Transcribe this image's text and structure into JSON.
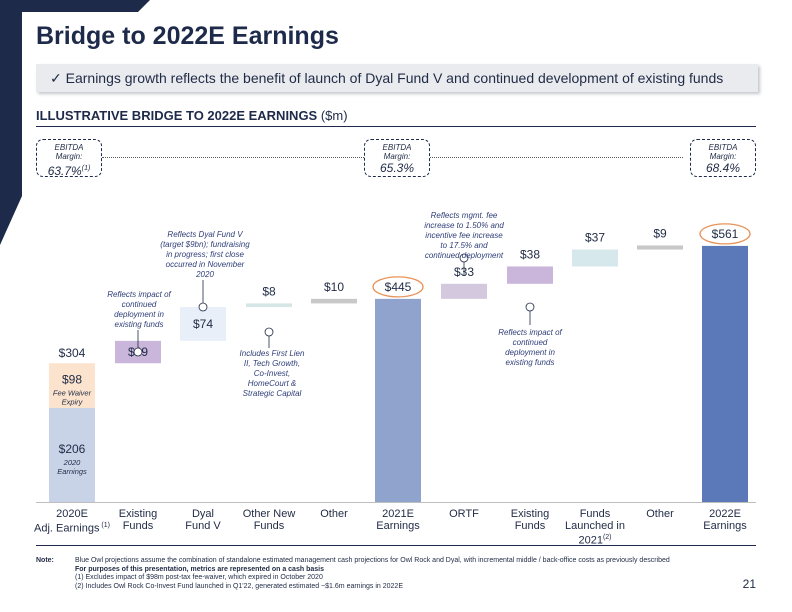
{
  "title": "Bridge to 2022E Earnings",
  "banner": {
    "check": "✓",
    "text": "Earnings growth reflects the benefit of launch of Dyal Fund V and continued development of existing funds"
  },
  "subtitle": {
    "main": "ILLUSTRATIVE BRIDGE TO 2022E EARNINGS",
    "unit": " ($m)"
  },
  "ebitda_boxes": [
    {
      "label_1": "EBITDA",
      "label_2": "Margin:",
      "value": "63.7%",
      "note": "(1)"
    },
    {
      "label_1": "EBITDA",
      "label_2": "Margin:",
      "value": "65.3%",
      "note": ""
    },
    {
      "label_1": "EBITDA",
      "label_2": "Margin:",
      "value": "68.4%",
      "note": ""
    }
  ],
  "x_labels": [
    {
      "line1": "2020E",
      "line2": "Adj. Earnings",
      "note": " (1)"
    },
    {
      "line1": "Existing",
      "line2": "Funds",
      "note": ""
    },
    {
      "line1": "Dyal",
      "line2": "Fund V",
      "note": ""
    },
    {
      "line1": "Other New",
      "line2": "Funds",
      "note": ""
    },
    {
      "line1": "Other",
      "line2": "",
      "note": ""
    },
    {
      "line1": "2021E",
      "line2": "Earnings",
      "note": ""
    },
    {
      "line1": "ORTF",
      "line2": "",
      "note": ""
    },
    {
      "line1": "Existing",
      "line2": "Funds",
      "note": ""
    },
    {
      "line1": "Funds",
      "line2": "Launched in",
      "line3": "2021",
      "note": "(2)"
    },
    {
      "line1": "Other",
      "line2": "",
      "note": ""
    },
    {
      "line1": "2022E",
      "line2": "Earnings",
      "note": ""
    }
  ],
  "callouts": {
    "existing_funds_1": "Reflects impact of continued deployment in existing funds",
    "dyal_fund_v": "Reflects Dyal Fund V (target $9bn); fundraising in progress; first close occurred in November 2020",
    "other_new_funds": "Includes First Lien II, Tech Growth, Co-Invest, HomeCourt & Strategic Capital",
    "ortf": "Reflects mgmt. fee increase to 1.50% and incentive fee increase to 17.5% and continued deployment",
    "existing_funds_2": "Reflects impact of continued deployment in existing funds"
  },
  "chart_data": {
    "type": "bar",
    "subtype": "waterfall",
    "title": "ILLUSTRATIVE BRIDGE TO 2022E EARNINGS ($m)",
    "unit": "$m",
    "categories": [
      "2020E Adj. Earnings",
      "Existing Funds",
      "Dyal Fund V",
      "Other New Funds",
      "Other",
      "2021E Earnings",
      "ORTF",
      "Existing Funds",
      "Funds Launched in 2021",
      "Other",
      "2022E Earnings"
    ],
    "values": [
      304,
      49,
      74,
      8,
      10,
      445,
      33,
      38,
      37,
      9,
      561
    ],
    "labels": [
      "$304",
      "$49",
      "$74",
      "$8",
      "$10",
      "$445",
      "$33",
      "$38",
      "$37",
      "$9",
      "$561"
    ],
    "kinds": [
      "total",
      "delta",
      "delta",
      "delta",
      "delta",
      "total",
      "delta",
      "delta",
      "delta",
      "delta",
      "total"
    ],
    "first_bar_segments": [
      {
        "value": 206,
        "label": "$206",
        "sublabel": "2020 Earnings",
        "color": "#c9d3e8"
      },
      {
        "value": 98,
        "label": "$98",
        "sublabel": "Fee Waiver Expiry",
        "color": "#fbe3cd"
      }
    ],
    "colors": [
      "#c9d3e8",
      "#c9b6da",
      "#e8eff8",
      "#d6e5e5",
      "#c8c8c8",
      "#8fa3cc",
      "#d4c8de",
      "#c9b6da",
      "#d6e8ec",
      "#c8c8c8",
      "#5b78b8"
    ],
    "highlighted": [
      "$445",
      "$561"
    ],
    "highlight_color": "#e8935a",
    "ylim": [
      0,
      600
    ]
  },
  "notes": {
    "label": "Note:",
    "line1": "Blue Owl projections assume the combination of standalone estimated management cash projections for Owl Rock and Dyal, with incremental middle / back-office costs as previously described",
    "line2": "For purposes of this presentation, metrics are represented on a cash basis",
    "line3": "(1) Excludes impact of $98m post-tax fee-waiver, which expired in October 2020",
    "line4": "(2) Includes Owl Rock Co-Invest Fund launched in Q1'22, generated estimated ~$1.6m earnings in 2022E"
  },
  "page_number": "21"
}
